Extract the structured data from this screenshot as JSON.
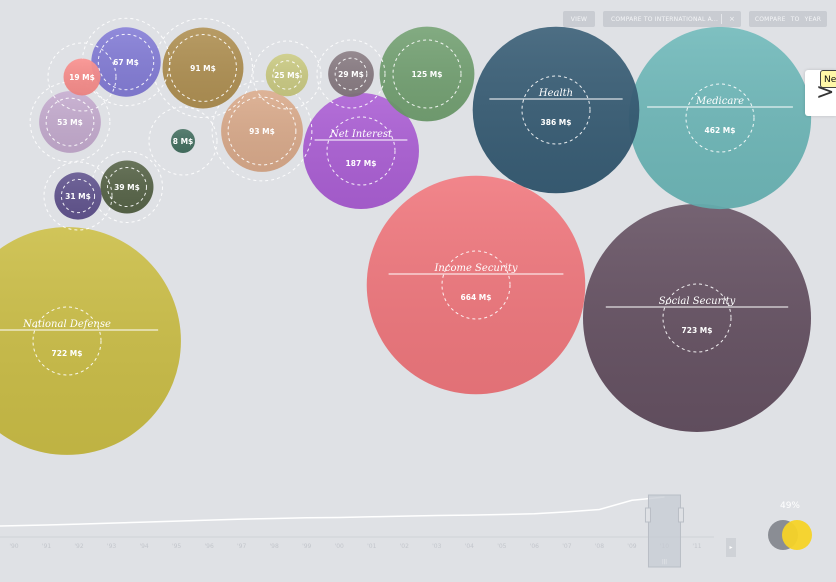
{
  "toolbar": {
    "view_label": "VIEW",
    "compare_intl_label": "COMPARE TO INTERNATIONAL A...",
    "compare_intl_clear": "×",
    "compare_year_label": "COMPARE TO YEAR"
  },
  "next_button": {
    "arrow": ">",
    "tooltip": "Ne"
  },
  "timeline": {
    "year_ticks": [
      "'90",
      "'91",
      "'92",
      "'93",
      "'94",
      "'95",
      "'96",
      "'97",
      "'98",
      "'99",
      "'00",
      "'01",
      "'02",
      "'03",
      "'04",
      "'05",
      "'06",
      "'07",
      "'08",
      "'09",
      "'10",
      "'11"
    ],
    "selected_year": "'10",
    "play_icon": "▸",
    "handle_glyph": "|||"
  },
  "indicator": {
    "percent_label": "49%",
    "percent_value": 0.49,
    "colors": [
      "#8a8d94",
      "#f5d327"
    ]
  },
  "chart_data": {
    "type": "bubble",
    "unit": "M$",
    "series": [
      {
        "label": "Social Security",
        "value": 723,
        "color": "#5f4a5c"
      },
      {
        "label": "National Defense",
        "value": 722,
        "color": "#c9bc3e"
      },
      {
        "label": "Income Security",
        "value": 664,
        "color": "#f07278"
      },
      {
        "label": "Medicare",
        "value": 462,
        "color": "#69b6b7"
      },
      {
        "label": "Health",
        "value": 386,
        "color": "#2f5670"
      },
      {
        "label": "Net Interest",
        "value": 187,
        "color": "#a958d4"
      },
      {
        "label": "",
        "value": 125,
        "color": "#6f9e6e"
      },
      {
        "label": "",
        "value": 93,
        "color": "#d9a887"
      },
      {
        "label": "",
        "value": 91,
        "color": "#ad8c4c"
      },
      {
        "label": "",
        "value": 67,
        "color": "#7f78d6"
      },
      {
        "label": "",
        "value": 53,
        "color": "#c3a9ce"
      },
      {
        "label": "",
        "value": 39,
        "color": "#505e40"
      },
      {
        "label": "",
        "value": 31,
        "color": "#5b4d8a"
      },
      {
        "label": "",
        "value": 29,
        "color": "#85777e"
      },
      {
        "label": "",
        "value": 25,
        "color": "#c9c97e"
      },
      {
        "label": "",
        "value": 19,
        "color": "#fa8a88"
      },
      {
        "label": "",
        "value": 8,
        "color": "#3d6a5b"
      }
    ],
    "trend_line": {
      "x": [
        "'90",
        "'91",
        "'92",
        "'93",
        "'94",
        "'95",
        "'96",
        "'97",
        "'98",
        "'99",
        "'00",
        "'01",
        "'02",
        "'03",
        "'04",
        "'05",
        "'06",
        "'07",
        "'08",
        "'09",
        "'10"
      ],
      "y": [
        0.12,
        0.15,
        0.18,
        0.21,
        0.24,
        0.27,
        0.3,
        0.33,
        0.35,
        0.37,
        0.38,
        0.4,
        0.42,
        0.44,
        0.45,
        0.47,
        0.49,
        0.55,
        0.62,
        0.9,
        1.0
      ]
    }
  }
}
